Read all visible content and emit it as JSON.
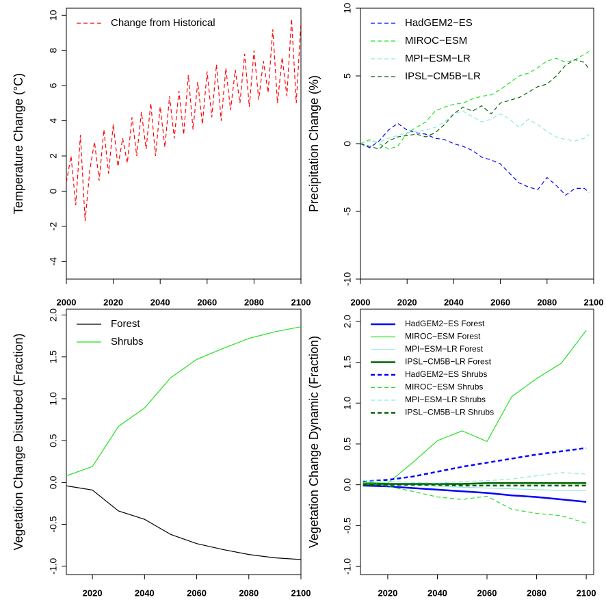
{
  "chart_data": [
    {
      "type": "line",
      "ylabel": "Temperature Change (°C)",
      "legend": "top-left",
      "x": [
        2000,
        2002,
        2004,
        2006,
        2008,
        2010,
        2012,
        2014,
        2016,
        2018,
        2020,
        2022,
        2024,
        2026,
        2028,
        2030,
        2032,
        2034,
        2036,
        2038,
        2040,
        2042,
        2044,
        2046,
        2048,
        2050,
        2052,
        2054,
        2056,
        2058,
        2060,
        2062,
        2064,
        2066,
        2068,
        2070,
        2072,
        2074,
        2076,
        2078,
        2080,
        2082,
        2084,
        2086,
        2088,
        2090,
        2092,
        2094,
        2096,
        2098,
        2100
      ],
      "series": [
        {
          "name": "Change from Historical",
          "color": "#ff0000",
          "dash": true,
          "width": 1.2,
          "values": [
            0.5,
            2.0,
            -0.8,
            3.2,
            -1.7,
            1.2,
            2.8,
            0.6,
            3.5,
            1.0,
            3.8,
            1.4,
            3.0,
            1.6,
            4.2,
            2.0,
            4.5,
            2.4,
            5.0,
            2.0,
            4.8,
            2.5,
            5.4,
            3.0,
            5.7,
            3.2,
            6.6,
            3.5,
            6.2,
            3.8,
            6.8,
            4.2,
            7.2,
            4.0,
            7.0,
            4.6,
            6.9,
            5.0,
            7.8,
            4.8,
            8.0,
            5.2,
            7.4,
            5.6,
            9.2,
            5.0,
            7.6,
            5.4,
            9.8,
            5.0,
            9.6
          ]
        }
      ],
      "xlim": [
        2000,
        2100
      ],
      "xticks": [
        2000,
        2020,
        2040,
        2060,
        2080,
        2100
      ],
      "ylim": [
        -5,
        10.4
      ],
      "yticks": [
        -4,
        -2,
        0,
        2,
        4,
        6,
        8,
        10
      ]
    },
    {
      "type": "line",
      "ylabel": "Precipitation Change (%)",
      "legend": "top-left",
      "x": [
        2000,
        2004,
        2008,
        2012,
        2016,
        2020,
        2024,
        2028,
        2032,
        2036,
        2040,
        2044,
        2048,
        2052,
        2056,
        2060,
        2064,
        2068,
        2072,
        2076,
        2080,
        2084,
        2088,
        2092,
        2096,
        2098
      ],
      "series": [
        {
          "name": "HadGEM2−ES",
          "color": "#0000ff",
          "dash": true,
          "width": 1.2,
          "values": [
            0,
            -0.3,
            0.2,
            1.0,
            1.5,
            1.0,
            0.8,
            0.7,
            0.4,
            0.3,
            0,
            -0.2,
            -0.5,
            -1.0,
            -1.2,
            -1.5,
            -2.2,
            -2.9,
            -3.2,
            -3.4,
            -2.5,
            -3.1,
            -3.8,
            -3.3,
            -3.3,
            -3.6
          ]
        },
        {
          "name": "MIROC−ESM",
          "color": "#22e022",
          "dash": true,
          "width": 1.2,
          "values": [
            0,
            0.3,
            0,
            -0.4,
            -0.2,
            0.8,
            1.2,
            1.6,
            2.4,
            2.7,
            2.9,
            3.0,
            3.3,
            3.5,
            3.6,
            4.0,
            4.5,
            5.0,
            5.2,
            5.6,
            6.1,
            6.3,
            6.0,
            6.2,
            6.6,
            6.8
          ]
        },
        {
          "name": "MPI−ESM−LR",
          "color": "#8ee8e0",
          "dash": true,
          "width": 1.2,
          "values": [
            0,
            0.2,
            0.1,
            0.4,
            0.6,
            0.8,
            0.9,
            1.0,
            1.2,
            1.6,
            2.2,
            2.4,
            2.0,
            1.6,
            1.8,
            2.2,
            1.8,
            1.2,
            1.8,
            1.4,
            0.9,
            0.5,
            0.3,
            0.2,
            0.4,
            0.7
          ]
        },
        {
          "name": "IPSL−CM5B−LR",
          "color": "#006400",
          "dash": true,
          "width": 1.2,
          "values": [
            0,
            -0.2,
            -0.4,
            0.2,
            0.5,
            0.6,
            0.7,
            0.5,
            0.8,
            1.4,
            2.2,
            2.7,
            2.4,
            2.8,
            2.2,
            3.0,
            3.2,
            3.4,
            3.8,
            4.2,
            4.4,
            5.0,
            5.8,
            6.2,
            6.0,
            5.5
          ]
        }
      ],
      "xlim": [
        2000,
        2100
      ],
      "xticks": [
        2000,
        2020,
        2040,
        2060,
        2080,
        2100
      ],
      "ylim": [
        -10,
        10
      ],
      "yticks": [
        -10,
        -5,
        0,
        5,
        10
      ]
    },
    {
      "type": "line",
      "ylabel": "Vegetation Change Disturbed (Fraction)",
      "legend": "top-left",
      "x": [
        2010,
        2020,
        2030,
        2040,
        2050,
        2060,
        2070,
        2080,
        2090,
        2100
      ],
      "series": [
        {
          "name": "Forest",
          "color": "#000000",
          "dash": false,
          "width": 1.2,
          "values": [
            -0.04,
            -0.09,
            -0.34,
            -0.44,
            -0.62,
            -0.73,
            -0.8,
            -0.86,
            -0.9,
            -0.92
          ]
        },
        {
          "name": "Shrubs",
          "color": "#22e022",
          "dash": false,
          "width": 1.2,
          "values": [
            0.08,
            0.19,
            0.67,
            0.89,
            1.25,
            1.47,
            1.6,
            1.72,
            1.8,
            1.86
          ]
        }
      ],
      "xlim": [
        2010,
        2100
      ],
      "xticks": [
        2020,
        2040,
        2060,
        2080,
        2100
      ],
      "ylim": [
        -1.1,
        2.07
      ],
      "yticks": [
        {
          "value": -1,
          "label": "-1.0"
        },
        -0.5,
        {
          "value": 0,
          "label": "0.0"
        },
        0.5,
        {
          "value": 1,
          "label": "1.0"
        },
        1.5,
        {
          "value": 2,
          "label": "2.0"
        }
      ]
    },
    {
      "type": "line",
      "ylabel": "Vegetation Change Dynamic (Fraction)",
      "legend": "top-left",
      "x": [
        2010,
        2020,
        2030,
        2040,
        2050,
        2060,
        2070,
        2080,
        2090,
        2100
      ],
      "series": [
        {
          "name": "HadGEM2−ES Forest",
          "color": "#0000ff",
          "dash": false,
          "width": 2.5,
          "values": [
            -0.01,
            -0.02,
            -0.04,
            -0.06,
            -0.08,
            -0.1,
            -0.13,
            -0.15,
            -0.18,
            -0.21
          ]
        },
        {
          "name": "MIROC−ESM Forest",
          "color": "#22e022",
          "dash": false,
          "width": 1.2,
          "values": [
            0.03,
            0.02,
            0.27,
            0.54,
            0.66,
            0.53,
            1.08,
            1.3,
            1.49,
            1.89
          ]
        },
        {
          "name": "MPI−ESM−LR Forest",
          "color": "#8ee8e0",
          "dash": false,
          "width": 1.2,
          "values": [
            0.0,
            0.01,
            0.0,
            -0.02,
            -0.03,
            -0.04,
            -0.05,
            -0.06,
            -0.07,
            -0.07
          ]
        },
        {
          "name": "IPSL−CM5B−LR Forest",
          "color": "#006400",
          "dash": false,
          "width": 2.5,
          "values": [
            0.01,
            0.01,
            0.01,
            0.01,
            0.01,
            0.02,
            0.02,
            0.02,
            0.02,
            0.02
          ]
        },
        {
          "name": "HadGEM2−ES Shrubs",
          "color": "#0000ff",
          "dash": true,
          "width": 2.5,
          "values": [
            0.04,
            0.06,
            0.1,
            0.16,
            0.22,
            0.27,
            0.32,
            0.37,
            0.41,
            0.45
          ]
        },
        {
          "name": "MIROC−ESM Shrubs",
          "color": "#22e022",
          "dash": true,
          "width": 1.2,
          "values": [
            0.05,
            -0.02,
            -0.08,
            -0.15,
            -0.18,
            -0.14,
            -0.3,
            -0.35,
            -0.38,
            -0.47
          ]
        },
        {
          "name": "MPI−ESM−LR Shrubs",
          "color": "#8ee8e0",
          "dash": true,
          "width": 1.2,
          "values": [
            0.05,
            0.04,
            0.03,
            0.02,
            0.04,
            0.05,
            0.07,
            0.11,
            0.15,
            0.13
          ]
        },
        {
          "name": "IPSL−CM5B−LR Shrubs",
          "color": "#006400",
          "dash": true,
          "width": 2.5,
          "values": [
            0.0,
            0.0,
            0.0,
            0.0,
            -0.01,
            -0.01,
            -0.01,
            -0.01,
            -0.01,
            -0.01
          ]
        }
      ],
      "xlim": [
        2009,
        2103
      ],
      "xticks": [
        2020,
        2040,
        2060,
        2080,
        2100
      ],
      "ylim": [
        -1.1,
        2.15
      ],
      "yticks": [
        {
          "value": -1,
          "label": "-1.0"
        },
        -0.5,
        {
          "value": 0,
          "label": "0.0"
        },
        0.5,
        {
          "value": 1,
          "label": "1.0"
        },
        1.5,
        {
          "value": 2,
          "label": "2.0"
        }
      ]
    }
  ]
}
